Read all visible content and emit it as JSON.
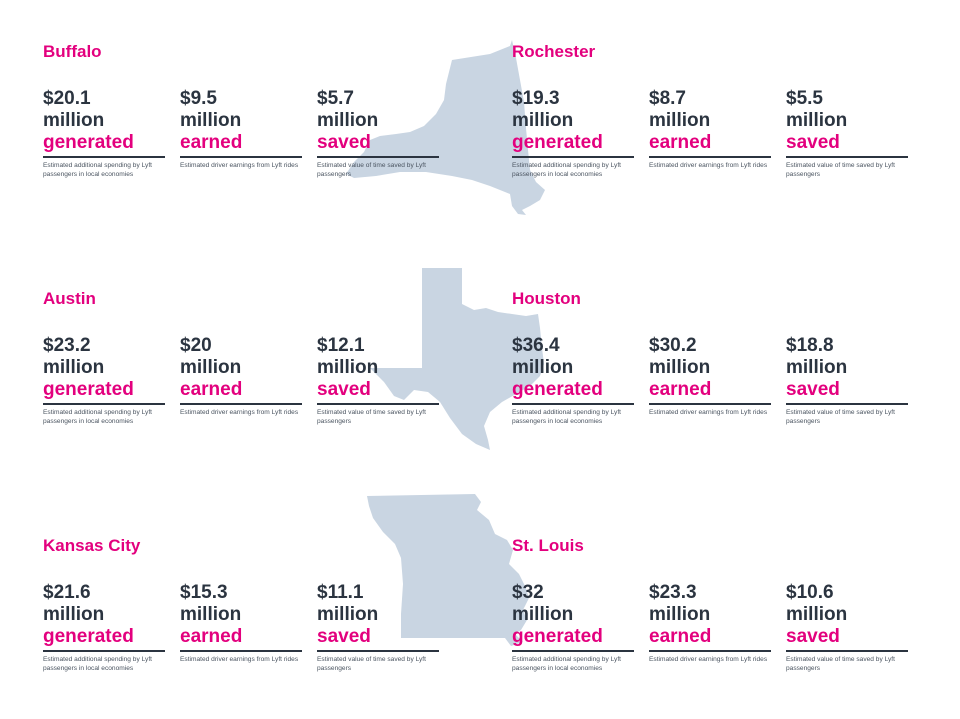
{
  "colors": {
    "accent": "#e3007e",
    "text": "#2b3440",
    "state_shape": "#c9d5e2"
  },
  "states": [
    "new-york-shape",
    "texas-shape",
    "missouri-shape"
  ],
  "cities": [
    {
      "name": "Buffalo",
      "stats": [
        {
          "amount": "$20.1",
          "unit": "million",
          "verb": "generated",
          "desc": "Estimated additional spending by Lyft passengers in local economies"
        },
        {
          "amount": "$9.5",
          "unit": "million",
          "verb": "earned",
          "desc": "Estimated driver earnings from Lyft rides"
        },
        {
          "amount": "$5.7",
          "unit": "million",
          "verb": "saved",
          "desc": "Estimated value of time saved by Lyft passengers"
        }
      ]
    },
    {
      "name": "Rochester",
      "stats": [
        {
          "amount": "$19.3",
          "unit": "million",
          "verb": "generated",
          "desc": "Estimated additional spending by Lyft passengers in local economies"
        },
        {
          "amount": "$8.7",
          "unit": "million",
          "verb": "earned",
          "desc": "Estimated driver earnings from Lyft rides"
        },
        {
          "amount": "$5.5",
          "unit": "million",
          "verb": "saved",
          "desc": "Estimated value of time saved by Lyft passengers"
        }
      ]
    },
    {
      "name": "Austin",
      "stats": [
        {
          "amount": "$23.2",
          "unit": "million",
          "verb": "generated",
          "desc": "Estimated additional spending by Lyft passengers in local economies"
        },
        {
          "amount": "$20",
          "unit": "million",
          "verb": "earned",
          "desc": "Estimated driver earnings from Lyft rides"
        },
        {
          "amount": "$12.1",
          "unit": "million",
          "verb": "saved",
          "desc": "Estimated value of time saved by Lyft passengers"
        }
      ]
    },
    {
      "name": "Houston",
      "stats": [
        {
          "amount": "$36.4",
          "unit": "million",
          "verb": "generated",
          "desc": "Estimated additional spending by Lyft passengers in local economies"
        },
        {
          "amount": "$30.2",
          "unit": "million",
          "verb": "earned",
          "desc": "Estimated driver earnings from Lyft rides"
        },
        {
          "amount": "$18.8",
          "unit": "million",
          "verb": "saved",
          "desc": "Estimated value of time saved by Lyft passengers"
        }
      ]
    },
    {
      "name": "Kansas City",
      "stats": [
        {
          "amount": "$21.6",
          "unit": "million",
          "verb": "generated",
          "desc": "Estimated additional spending by Lyft passengers in local economies"
        },
        {
          "amount": "$15.3",
          "unit": "million",
          "verb": "earned",
          "desc": "Estimated driver earnings from Lyft rides"
        },
        {
          "amount": "$11.1",
          "unit": "million",
          "verb": "saved",
          "desc": "Estimated value of time saved by Lyft passengers"
        }
      ]
    },
    {
      "name": "St. Louis",
      "stats": [
        {
          "amount": "$32",
          "unit": "million",
          "verb": "generated",
          "desc": "Estimated additional spending by Lyft passengers in local economies"
        },
        {
          "amount": "$23.3",
          "unit": "million",
          "verb": "earned",
          "desc": "Estimated driver earnings from Lyft rides"
        },
        {
          "amount": "$10.6",
          "unit": "million",
          "verb": "saved",
          "desc": "Estimated value of time saved by Lyft passengers"
        }
      ]
    }
  ]
}
